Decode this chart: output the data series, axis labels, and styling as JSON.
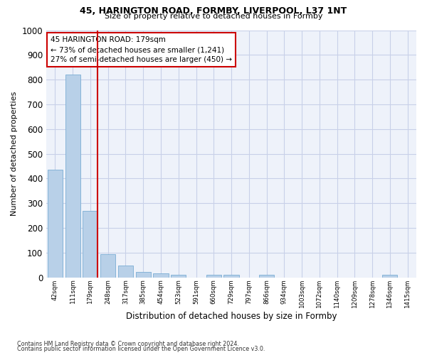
{
  "title1": "45, HARINGTON ROAD, FORMBY, LIVERPOOL, L37 1NT",
  "title2": "Size of property relative to detached houses in Formby",
  "xlabel": "Distribution of detached houses by size in Formby",
  "ylabel": "Number of detached properties",
  "categories": [
    "42sqm",
    "111sqm",
    "179sqm",
    "248sqm",
    "317sqm",
    "385sqm",
    "454sqm",
    "523sqm",
    "591sqm",
    "660sqm",
    "729sqm",
    "797sqm",
    "866sqm",
    "934sqm",
    "1003sqm",
    "1072sqm",
    "1140sqm",
    "1209sqm",
    "1278sqm",
    "1346sqm",
    "1415sqm"
  ],
  "values": [
    435,
    820,
    268,
    93,
    47,
    22,
    17,
    12,
    0,
    12,
    12,
    0,
    12,
    0,
    0,
    0,
    0,
    0,
    0,
    10,
    0
  ],
  "bar_color": "#b8d0e8",
  "bar_edge_color": "#7aadd4",
  "highlight_index": 2,
  "highlight_line_color": "#cc0000",
  "ylim": [
    0,
    1000
  ],
  "yticks": [
    0,
    100,
    200,
    300,
    400,
    500,
    600,
    700,
    800,
    900,
    1000
  ],
  "annotation_title": "45 HARINGTON ROAD: 179sqm",
  "annotation_line1": "← 73% of detached houses are smaller (1,241)",
  "annotation_line2": "27% of semi-detached houses are larger (450) →",
  "annotation_box_color": "#ffffff",
  "annotation_box_edge": "#cc0000",
  "footer1": "Contains HM Land Registry data © Crown copyright and database right 2024.",
  "footer2": "Contains public sector information licensed under the Open Government Licence v3.0.",
  "bg_color": "#eef2fa",
  "grid_color": "#c8d0e8"
}
